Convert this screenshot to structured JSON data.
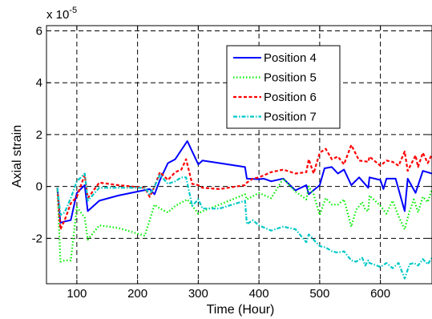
{
  "chart_data": {
    "type": "line",
    "title": "",
    "xlabel": "Time (Hour)",
    "ylabel": "Axial strain",
    "y_exponent_label": "x 10",
    "y_exponent_power": "-5",
    "xlim": [
      50,
      685
    ],
    "ylim": [
      -3.75,
      6.2
    ],
    "xticks": [
      100,
      200,
      300,
      400,
      500,
      600
    ],
    "yticks": [
      -2,
      0,
      2,
      4,
      6
    ],
    "grid": true,
    "legend_position": "top-right",
    "series": [
      {
        "name": "Position 4",
        "color": "#0000ff",
        "dash": "solid",
        "x": [
          68,
          73,
          80,
          90,
          100,
          113,
          118,
          137,
          168,
          220,
          228,
          237,
          250,
          262,
          282,
          300,
          307,
          335,
          377,
          380,
          400,
          408,
          420,
          440,
          460,
          478,
          482,
          500,
          508,
          520,
          530,
          540,
          552,
          565,
          580,
          582,
          600,
          605,
          610,
          625,
          640,
          645,
          658,
          670,
          685
        ],
        "y": [
          -0.05,
          -1.4,
          -1.35,
          -1.3,
          -0.25,
          0.05,
          -0.95,
          -0.55,
          -0.35,
          -0.1,
          -0.3,
          0.25,
          0.9,
          1.05,
          1.75,
          0.85,
          1.0,
          0.9,
          0.75,
          0.3,
          0.28,
          0.3,
          0.2,
          0.3,
          -0.15,
          0.05,
          -0.3,
          0.05,
          0.7,
          0.75,
          0.5,
          0.65,
          0.05,
          0.35,
          -0.05,
          0.35,
          0.25,
          -0.1,
          0.3,
          0.3,
          -0.95,
          0.3,
          -0.25,
          0.6,
          0.5
        ]
      },
      {
        "name": "Position 5",
        "color": "#00ee00",
        "dash": "dotted",
        "x": [
          68,
          73,
          80,
          90,
          100,
          113,
          118,
          137,
          168,
          212,
          228,
          237,
          250,
          262,
          282,
          300,
          307,
          335,
          377,
          380,
          400,
          420,
          440,
          460,
          478,
          482,
          490,
          500,
          510,
          520,
          530,
          540,
          552,
          560,
          570,
          575,
          580,
          582,
          600,
          610,
          620,
          630,
          640,
          648,
          655,
          662,
          670,
          678,
          685
        ],
        "y": [
          -0.05,
          -2.9,
          -2.85,
          -2.85,
          -0.8,
          -1.2,
          -2.05,
          -1.5,
          -1.6,
          -1.9,
          -0.7,
          -0.85,
          -1.0,
          -0.75,
          -0.5,
          -1.05,
          -0.95,
          -0.7,
          -0.3,
          -0.5,
          -0.25,
          -0.45,
          0.3,
          -0.2,
          -0.5,
          0.0,
          -0.3,
          -1.1,
          -0.45,
          -0.7,
          -0.7,
          -0.5,
          -1.55,
          -0.9,
          -0.6,
          -0.9,
          -0.95,
          -0.35,
          -0.75,
          -1.05,
          -0.55,
          -1.15,
          -1.65,
          -0.95,
          -0.5,
          -1.0,
          -0.4,
          -0.6,
          -0.1
        ]
      },
      {
        "name": "Position 6",
        "color": "#ff0000",
        "dash": "dashed",
        "x": [
          68,
          73,
          80,
          90,
          100,
          113,
          118,
          137,
          168,
          212,
          220,
          228,
          237,
          250,
          262,
          272,
          280,
          290,
          300,
          307,
          335,
          377,
          380,
          390,
          400,
          420,
          440,
          460,
          478,
          482,
          490,
          500,
          510,
          520,
          530,
          540,
          552,
          565,
          580,
          582,
          600,
          610,
          620,
          630,
          640,
          645,
          658,
          662,
          670,
          678,
          685
        ],
        "y": [
          -0.05,
          -1.65,
          -1.3,
          -0.65,
          -0.4,
          0.45,
          -0.45,
          0.15,
          0.05,
          -0.05,
          -0.4,
          0.0,
          0.55,
          0.25,
          0.55,
          0.65,
          1.05,
          0.1,
          0.05,
          -0.05,
          -0.1,
          0.05,
          0.15,
          0.3,
          0.35,
          0.55,
          0.65,
          0.5,
          0.55,
          1.05,
          0.5,
          1.3,
          1.45,
          1.05,
          1.15,
          0.85,
          1.6,
          1.0,
          0.95,
          1.15,
          0.8,
          1.0,
          0.95,
          0.8,
          1.35,
          0.6,
          1.2,
          0.75,
          1.3,
          0.9,
          1.25
        ]
      },
      {
        "name": "Position 7",
        "color": "#00c8c8",
        "dash": "dashdot",
        "x": [
          68,
          73,
          80,
          90,
          100,
          113,
          118,
          137,
          168,
          212,
          220,
          228,
          237,
          250,
          262,
          272,
          280,
          290,
          300,
          307,
          335,
          377,
          380,
          390,
          400,
          420,
          440,
          460,
          478,
          482,
          490,
          500,
          510,
          520,
          530,
          540,
          552,
          560,
          570,
          575,
          580,
          582,
          600,
          610,
          620,
          630,
          640,
          648,
          655,
          662,
          670,
          678,
          685
        ],
        "y": [
          -0.05,
          -1.1,
          -1.0,
          -0.45,
          0.2,
          0.5,
          -0.55,
          -0.05,
          -0.05,
          -0.05,
          -0.3,
          0.0,
          0.45,
          0.1,
          0.2,
          0.35,
          0.35,
          -0.75,
          -0.5,
          -0.85,
          -0.85,
          -0.55,
          -1.45,
          -1.3,
          -1.5,
          -1.7,
          -1.55,
          -1.65,
          -2.15,
          -1.85,
          -2.05,
          -2.3,
          -2.35,
          -2.5,
          -2.55,
          -2.5,
          -2.85,
          -2.9,
          -2.75,
          -3.05,
          -2.85,
          -2.95,
          -3.1,
          -2.95,
          -3.15,
          -2.95,
          -3.55,
          -3.0,
          -2.95,
          -3.05,
          -2.8,
          -3.0,
          -2.75
        ]
      }
    ]
  }
}
